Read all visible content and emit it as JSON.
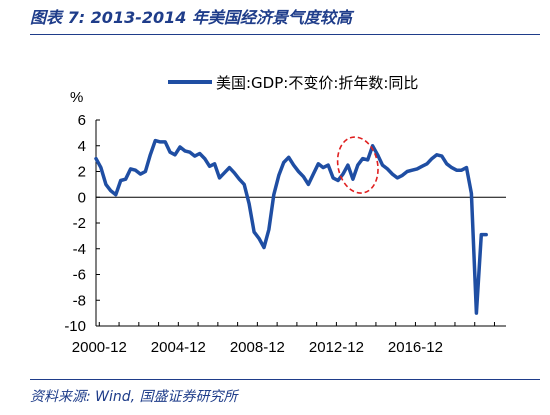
{
  "header": {
    "title": "图表 7:  2013-2014 年美国经济景气度较高"
  },
  "footer": {
    "source": "资料来源:  Wind,  国盛证券研究所"
  },
  "chart_data": {
    "type": "line",
    "ylabel": "%",
    "ylim": [
      -10,
      6
    ],
    "yticks": [
      6,
      4,
      2,
      0,
      -2,
      -4,
      -6,
      -8,
      -10
    ],
    "xlim": [
      2000.75,
      2021.5
    ],
    "xticks": [
      {
        "label": "2000-12",
        "x": 2000.917
      },
      {
        "label": "2004-12",
        "x": 2004.917
      },
      {
        "label": "2008-12",
        "x": 2008.917
      },
      {
        "label": "2012-12",
        "x": 2012.917
      },
      {
        "label": "2016-12",
        "x": 2016.917
      }
    ],
    "grid": false,
    "legend_position": "top-center",
    "annotation": {
      "type": "dashed-ellipse",
      "color": "#e02020",
      "x_range": [
        2013.0,
        2015.0
      ],
      "y_range": [
        0.3,
        4.7
      ]
    },
    "series": [
      {
        "name": "美国:GDP:不变价:折年数:同比",
        "color": "#1f4ea3",
        "x": [
          2000.75,
          2001.0,
          2001.25,
          2001.5,
          2001.75,
          2002.0,
          2002.25,
          2002.5,
          2002.75,
          2003.0,
          2003.25,
          2003.5,
          2003.75,
          2004.0,
          2004.25,
          2004.5,
          2004.75,
          2005.0,
          2005.25,
          2005.5,
          2005.75,
          2006.0,
          2006.25,
          2006.5,
          2006.75,
          2007.0,
          2007.25,
          2007.5,
          2007.75,
          2008.0,
          2008.25,
          2008.5,
          2008.75,
          2009.0,
          2009.25,
          2009.5,
          2009.75,
          2010.0,
          2010.25,
          2010.5,
          2010.75,
          2011.0,
          2011.25,
          2011.5,
          2011.75,
          2012.0,
          2012.25,
          2012.5,
          2012.75,
          2013.0,
          2013.25,
          2013.5,
          2013.75,
          2014.0,
          2014.25,
          2014.5,
          2014.75,
          2015.0,
          2015.25,
          2015.5,
          2015.75,
          2016.0,
          2016.25,
          2016.5,
          2016.75,
          2017.0,
          2017.25,
          2017.5,
          2017.75,
          2018.0,
          2018.25,
          2018.5,
          2018.75,
          2019.0,
          2019.25,
          2019.5,
          2019.75,
          2020.0,
          2020.25,
          2020.5
        ],
        "values": [
          3.0,
          2.3,
          1.0,
          0.5,
          0.2,
          1.3,
          1.4,
          2.2,
          2.1,
          1.8,
          2.0,
          3.3,
          4.4,
          4.3,
          4.3,
          3.5,
          3.3,
          3.9,
          3.6,
          3.5,
          3.2,
          3.4,
          3.0,
          2.4,
          2.6,
          1.5,
          1.9,
          2.3,
          1.9,
          1.4,
          1.0,
          -0.5,
          -2.7,
          -3.2,
          -3.9,
          -2.5,
          0.2,
          1.7,
          2.7,
          3.1,
          2.5,
          2.0,
          1.6,
          1.0,
          1.8,
          2.6,
          2.3,
          2.5,
          1.5,
          1.3,
          1.8,
          2.5,
          1.4,
          2.5,
          3.0,
          2.9,
          4.0,
          3.3,
          2.5,
          2.2,
          1.8,
          1.5,
          1.7,
          2.0,
          2.1,
          2.2,
          2.4,
          2.6,
          3.0,
          3.3,
          3.2,
          2.6,
          2.3,
          2.1,
          2.1,
          2.3,
          0.3,
          -9.0,
          -2.9,
          -2.9
        ]
      }
    ]
  }
}
